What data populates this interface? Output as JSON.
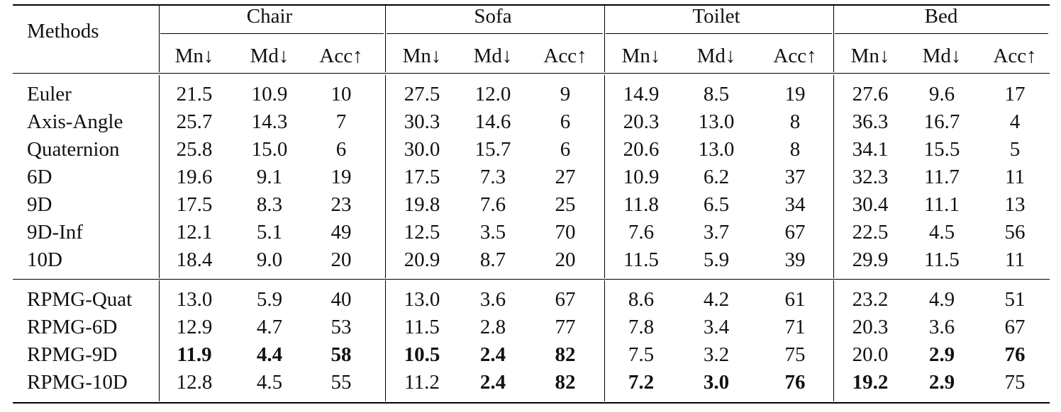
{
  "table": {
    "methods_header": "Methods",
    "groups": [
      "Chair",
      "Sofa",
      "Toilet",
      "Bed"
    ],
    "subheaders": [
      "Mn↓",
      "Md↓",
      "Acc↑"
    ],
    "sections": [
      {
        "rows": [
          {
            "method": "Euler",
            "values": [
              "21.5",
              "10.9",
              "10",
              "27.5",
              "12.0",
              "9",
              "14.9",
              "8.5",
              "19",
              "27.6",
              "9.6",
              "17"
            ],
            "bold": []
          },
          {
            "method": "Axis-Angle",
            "values": [
              "25.7",
              "14.3",
              "7",
              "30.3",
              "14.6",
              "6",
              "20.3",
              "13.0",
              "8",
              "36.3",
              "16.7",
              "4"
            ],
            "bold": []
          },
          {
            "method": "Quaternion",
            "values": [
              "25.8",
              "15.0",
              "6",
              "30.0",
              "15.7",
              "6",
              "20.6",
              "13.0",
              "8",
              "34.1",
              "15.5",
              "5"
            ],
            "bold": []
          },
          {
            "method": "6D",
            "values": [
              "19.6",
              "9.1",
              "19",
              "17.5",
              "7.3",
              "27",
              "10.9",
              "6.2",
              "37",
              "32.3",
              "11.7",
              "11"
            ],
            "bold": []
          },
          {
            "method": "9D",
            "values": [
              "17.5",
              "8.3",
              "23",
              "19.8",
              "7.6",
              "25",
              "11.8",
              "6.5",
              "34",
              "30.4",
              "11.1",
              "13"
            ],
            "bold": []
          },
          {
            "method": "9D-Inf",
            "values": [
              "12.1",
              "5.1",
              "49",
              "12.5",
              "3.5",
              "70",
              "7.6",
              "3.7",
              "67",
              "22.5",
              "4.5",
              "56"
            ],
            "bold": []
          },
          {
            "method": "10D",
            "values": [
              "18.4",
              "9.0",
              "20",
              "20.9",
              "8.7",
              "20",
              "11.5",
              "5.9",
              "39",
              "29.9",
              "11.5",
              "11"
            ],
            "bold": []
          }
        ]
      },
      {
        "rows": [
          {
            "method": "RPMG-Quat",
            "values": [
              "13.0",
              "5.9",
              "40",
              "13.0",
              "3.6",
              "67",
              "8.6",
              "4.2",
              "61",
              "23.2",
              "4.9",
              "51"
            ],
            "bold": []
          },
          {
            "method": "RPMG-6D",
            "values": [
              "12.9",
              "4.7",
              "53",
              "11.5",
              "2.8",
              "77",
              "7.8",
              "3.4",
              "71",
              "20.3",
              "3.6",
              "67"
            ],
            "bold": []
          },
          {
            "method": "RPMG-9D",
            "values": [
              "11.9",
              "4.4",
              "58",
              "10.5",
              "2.4",
              "82",
              "7.5",
              "3.2",
              "75",
              "20.0",
              "2.9",
              "76"
            ],
            "bold": [
              0,
              1,
              2,
              3,
              4,
              5,
              10,
              11
            ]
          },
          {
            "method": "RPMG-10D",
            "values": [
              "12.8",
              "4.5",
              "55",
              "11.2",
              "2.4",
              "82",
              "7.2",
              "3.0",
              "76",
              "19.2",
              "2.9",
              "75"
            ],
            "bold": [
              4,
              5,
              6,
              7,
              8,
              9,
              10
            ]
          }
        ]
      }
    ]
  }
}
